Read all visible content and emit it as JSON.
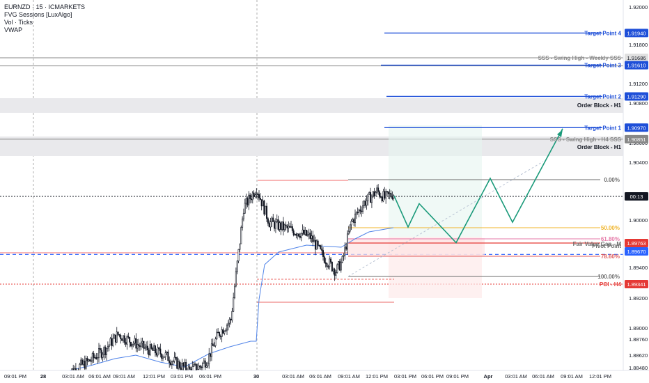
{
  "legend": {
    "symbol": "EURNZD · 15 · ICMARKETS",
    "indicator_1": "FVG Sessions [LuxAlgo]",
    "indicator_2": "Vol · Ticks",
    "indicator_3": "VWAP"
  },
  "colors": {
    "bull": "#131722",
    "bear": "#131722",
    "target_line": "#1e4fd8",
    "sss_line": "#8a8a8a",
    "order_block_fill": "#e9e9ec",
    "fib_line": "#6b6b6b",
    "fib_50": "#f0b429",
    "fib_618": "#e57aa8",
    "fib_786": "#e05a5a",
    "poi": "#e53935",
    "zigzag": "#1a9a7a",
    "vwap": "#4f83e8",
    "current_price": "#131722",
    "dashed_blue": "#2962ff",
    "fvg_red": "#f06b6b",
    "fvg_fill": "#fde3e3",
    "zone_green": "#e6f5f0",
    "zone_red": "#fdeaea"
  },
  "chart_data": {
    "type": "candlestick",
    "title": "EURNZD · 15 · ICMARKETS",
    "xlabel": "",
    "ylabel": "",
    "ylim": [
      1.8848,
      1.9225
    ],
    "price_ticks": [
      "1.92000",
      "1.91800",
      "1.91200",
      "1.90800",
      "1.90600",
      "1.90400",
      "1.90000",
      "1.89600",
      "1.89400",
      "1.89200",
      "1.89000",
      "1.88760",
      "1.88620",
      "1.88480"
    ],
    "time_ticks": [
      "09:01 PM",
      "28",
      "03:01 AM",
      "06:01 AM",
      "09:01 AM",
      "12:01 PM",
      "03:01 PM",
      "06:01 PM",
      "30",
      "03:01 AM",
      "06:01 AM",
      "09:01 AM",
      "12:01 PM",
      "03:01 PM",
      "06:01 PM",
      "09:01 PM",
      "Apr",
      "03:01 AM",
      "06:01 AM",
      "09:01 AM",
      "12:01 PM"
    ],
    "candle_close_path": [
      [
        0,
        1.8845
      ],
      [
        18,
        1.8858
      ],
      [
        30,
        1.887
      ],
      [
        40,
        1.8885
      ],
      [
        50,
        1.8878
      ],
      [
        62,
        1.887
      ],
      [
        75,
        1.8865
      ],
      [
        86,
        1.8855
      ],
      [
        96,
        1.8848
      ],
      [
        104,
        1.8852
      ],
      [
        110,
        1.886
      ],
      [
        118,
        1.8885
      ],
      [
        128,
        1.89
      ],
      [
        138,
        1.9015
      ],
      [
        148,
        1.9035
      ],
      [
        158,
        1.9
      ],
      [
        168,
        1.8995
      ],
      [
        180,
        1.899
      ],
      [
        190,
        1.8985
      ],
      [
        200,
        1.8965
      ],
      [
        210,
        1.895
      ],
      [
        215,
        1.896
      ],
      [
        222,
        1.9
      ],
      [
        232,
        1.902
      ],
      [
        242,
        1.9032
      ],
      [
        248,
        1.9025
      ],
      [
        256,
        1.903
      ]
    ],
    "levels": [
      {
        "label": "Target Point 4",
        "price_label": "1.91940",
        "value": 1.9194
      },
      {
        "label": "SSS - Swing High - Weekly SSS",
        "price_label": "1.91686",
        "value": 1.91686
      },
      {
        "label": "Target Point 3",
        "price_label": "1.91610",
        "value": 1.9161
      },
      {
        "label": "Target Point 2",
        "price_label": "1.91290",
        "value": 1.9129
      },
      {
        "label": "Order Block - H1",
        "value": 1.9115
      },
      {
        "label": "Target Point 1",
        "price_label": "1.90970",
        "value": 1.9097
      },
      {
        "label": "SSS - Swing High - H4 SSS",
        "price_label": "1.90851",
        "value": 1.90851
      },
      {
        "label": "Order Block - H1",
        "value": 1.9074
      },
      {
        "label": "0.00%",
        "value": 1.9041
      },
      {
        "label": "50.00%",
        "value": 1.899
      },
      {
        "label": "61.80%",
        "value": 1.8978
      },
      {
        "label": "Fair Value Gap - M",
        "price_label": "1.89763",
        "value": 1.89763
      },
      {
        "label": "Pivot Point",
        "price_label": "1.89670",
        "value": 1.8967
      },
      {
        "label": "78.60%",
        "value": 1.8962
      },
      {
        "label": "100.00%",
        "value": 1.8943
      },
      {
        "label": "POI - H4",
        "price_label": "1.89341",
        "value": 1.89341
      }
    ],
    "current_price_label": "00:13",
    "projection_path": [
      1.9027,
      1.8995,
      1.9019,
      1.8979,
      1.9045,
      1.9,
      1.9096
    ]
  }
}
